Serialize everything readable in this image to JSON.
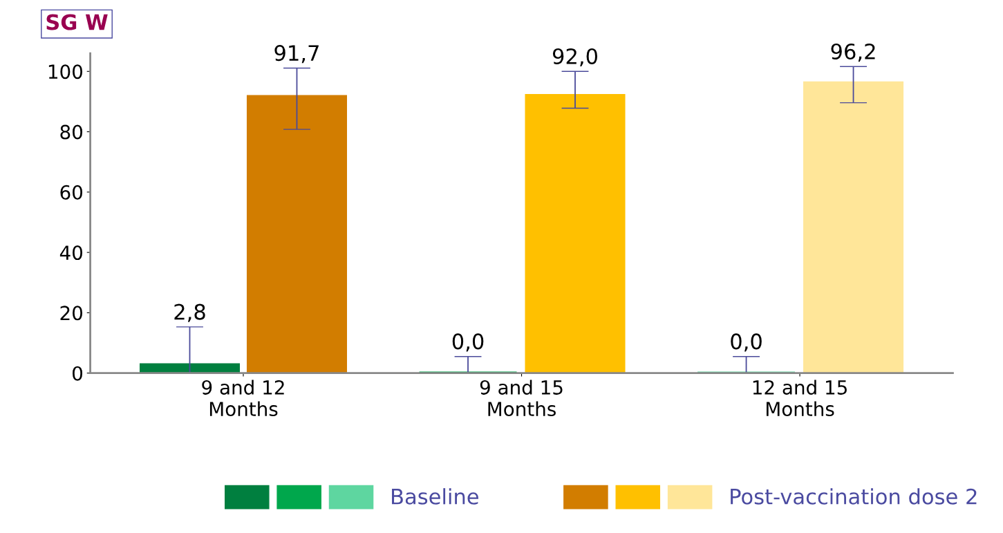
{
  "chart_data": {
    "type": "bar",
    "title": "SG W",
    "categories": [
      "9 and 12\nMonths",
      "9 and 15\nMonths",
      "12 and 15\nMonths"
    ],
    "series": [
      {
        "name": "Baseline",
        "colors": [
          "#007f3f",
          "#00a74c",
          "#5ed6a0"
        ],
        "values": [
          2.8,
          0.0,
          0.0
        ],
        "value_labels": [
          "2,8",
          "0,0",
          "0,0"
        ],
        "errors": [
          [
            0,
            15.3
          ],
          [
            0,
            5.5
          ],
          [
            0,
            5.5
          ]
        ]
      },
      {
        "name": "Post-vaccination dose 2",
        "colors": [
          "#d27d00",
          "#ffc000",
          "#ffe699"
        ],
        "values": [
          91.7,
          92.0,
          96.2
        ],
        "value_labels": [
          "91,7",
          "92,0",
          "96,2"
        ],
        "errors": [
          [
            80.8,
            101.1
          ],
          [
            87.8,
            100.0
          ],
          [
            89.6,
            101.6
          ]
        ]
      }
    ],
    "ylim": [
      0,
      106
    ],
    "yticks": [
      0,
      20,
      40,
      60,
      80,
      100
    ],
    "grid": false,
    "legend": "bottom"
  }
}
